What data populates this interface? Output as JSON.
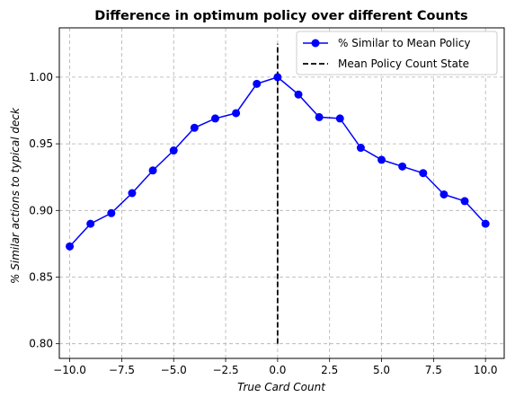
{
  "chart_data": {
    "type": "line",
    "title": "Difference in optimum policy over different Counts",
    "xlabel": "True Card Count",
    "ylabel": "% Similar actions to typical deck",
    "xlim": [
      -10.5,
      10.9
    ],
    "ylim": [
      0.789,
      1.037
    ],
    "grid": true,
    "legend_position": "top-right",
    "x_ticks": [
      -10.0,
      -7.5,
      -5.0,
      -2.5,
      0.0,
      2.5,
      5.0,
      7.5,
      10.0
    ],
    "x_tick_labels": [
      "−10.0",
      "−7.5",
      "−5.0",
      "−2.5",
      "0.0",
      "2.5",
      "5.0",
      "7.5",
      "10.0"
    ],
    "y_ticks": [
      0.8,
      0.85,
      0.9,
      0.95,
      1.0
    ],
    "y_tick_labels": [
      "0.80",
      "0.85",
      "0.90",
      "0.95",
      "1.00"
    ],
    "series": [
      {
        "name": "% Similar to Mean Policy",
        "color": "#0000ff",
        "marker": "circle",
        "x": [
          -10,
          -9,
          -8,
          -7,
          -6,
          -5,
          -4,
          -3,
          -2,
          -1,
          0,
          1,
          2,
          3,
          4,
          5,
          6,
          7,
          8,
          9,
          10
        ],
        "y": [
          0.873,
          0.89,
          0.898,
          0.913,
          0.93,
          0.945,
          0.962,
          0.969,
          0.973,
          0.995,
          1.0,
          0.987,
          0.97,
          0.969,
          0.947,
          0.938,
          0.933,
          0.928,
          0.912,
          0.907,
          0.89
        ]
      }
    ],
    "vline": {
      "name": "Mean Policy Count State",
      "x": 0,
      "y_range": [
        0.8,
        1.025
      ],
      "color": "#000000",
      "style": "dashed"
    }
  }
}
